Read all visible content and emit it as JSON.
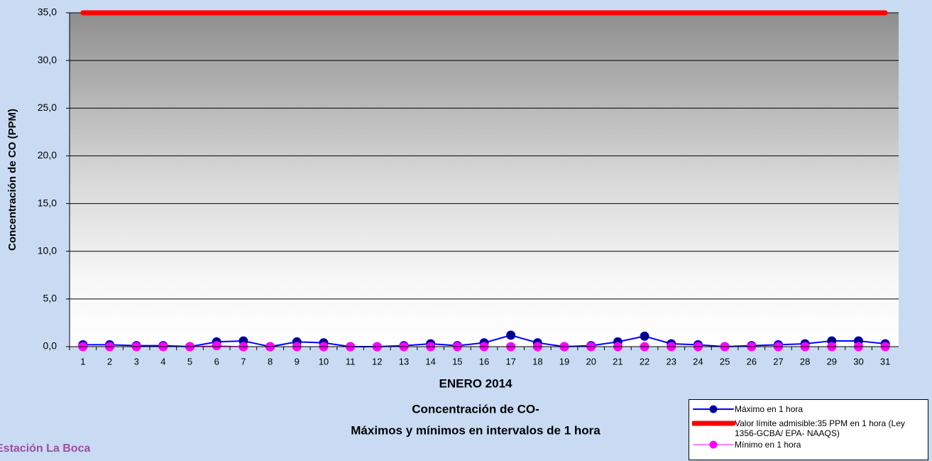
{
  "chart_data": {
    "type": "line",
    "station": "Estación La Boca",
    "x_title": "ENERO 2014",
    "title_lines": [
      "Concentración de CO-",
      "Máximos y mínimos en intervalos de 1 hora"
    ],
    "y_title": "Concentración de CO (PPM)",
    "categories": [
      "1",
      "2",
      "3",
      "4",
      "5",
      "6",
      "7",
      "8",
      "9",
      "10",
      "11",
      "12",
      "13",
      "14",
      "15",
      "16",
      "17",
      "18",
      "19",
      "20",
      "21",
      "22",
      "23",
      "24",
      "25",
      "26",
      "27",
      "28",
      "29",
      "30",
      "31"
    ],
    "ylim": [
      0,
      35
    ],
    "yticks": [
      {
        "value": 0,
        "label": "0,0"
      },
      {
        "value": 5,
        "label": "5,0"
      },
      {
        "value": 10,
        "label": "10,0"
      },
      {
        "value": 15,
        "label": "15,0"
      },
      {
        "value": 20,
        "label": "20,0"
      },
      {
        "value": 25,
        "label": "25,0"
      },
      {
        "value": 30,
        "label": "30,0"
      },
      {
        "value": 35,
        "label": "35,0"
      }
    ],
    "grid": true,
    "series": [
      {
        "name": "Máximo en 1 hora",
        "color": "#0000ff",
        "marker_color": "#000080",
        "line_width": 2,
        "marker": true,
        "values": [
          0.2,
          0.2,
          0.1,
          0.1,
          0.0,
          0.5,
          0.6,
          0.0,
          0.5,
          0.4,
          0.0,
          0.0,
          0.1,
          0.3,
          0.1,
          0.4,
          1.2,
          0.4,
          0.0,
          0.1,
          0.5,
          1.1,
          0.3,
          0.2,
          0.0,
          0.1,
          0.2,
          0.3,
          0.6,
          0.6,
          0.3
        ]
      },
      {
        "name": "Valor límite admisible:35 PPM en 1 hora (Ley 1356-GCBA/ EPA- NAAQS)",
        "color": "#ff0000",
        "line_width": 7,
        "marker": false,
        "values": [
          35,
          35,
          35,
          35,
          35,
          35,
          35,
          35,
          35,
          35,
          35,
          35,
          35,
          35,
          35,
          35,
          35,
          35,
          35,
          35,
          35,
          35,
          35,
          35,
          35,
          35,
          35,
          35,
          35,
          35,
          35
        ]
      },
      {
        "name": "Mínimo en 1 hora",
        "color": "#ff00ff",
        "marker_color": "#ff00ff",
        "line_width": 1,
        "marker": true,
        "values": [
          0.0,
          0.0,
          0.0,
          0.0,
          0.0,
          0.1,
          0.0,
          0.0,
          0.0,
          0.0,
          0.0,
          0.0,
          0.0,
          0.0,
          0.0,
          0.0,
          0.0,
          0.0,
          0.0,
          0.0,
          0.0,
          0.0,
          0.0,
          0.0,
          0.0,
          0.0,
          0.0,
          0.0,
          0.0,
          0.0,
          0.0
        ]
      }
    ]
  }
}
